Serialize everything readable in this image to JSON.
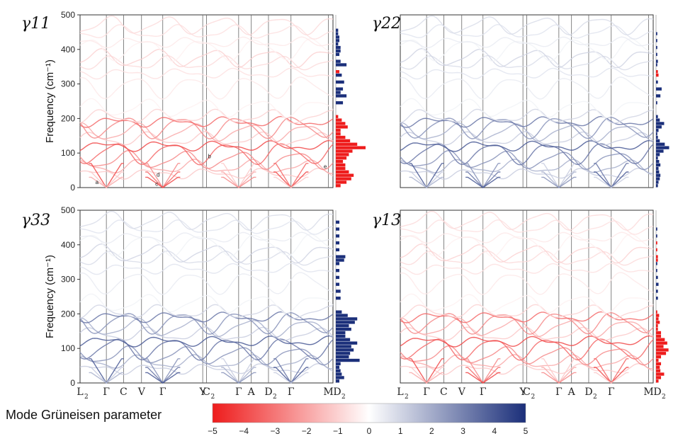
{
  "chart_data": [
    {
      "type": "line",
      "subtype": "phonon-dispersion-with-dos",
      "panel_label": "γ11",
      "ylabel": "Frequency (cm⁻¹)",
      "ylim": [
        0,
        500
      ],
      "yticks": [
        0,
        100,
        200,
        300,
        400,
        500
      ],
      "kpoints": [
        "L2",
        "Γ",
        "C",
        "V",
        "Γ",
        "Y",
        "C2",
        "Γ",
        "A",
        "D2",
        "Γ",
        "M",
        "D2"
      ],
      "kpoints_shown": false,
      "annotations": [
        {
          "text": "a",
          "x": 0.23,
          "y": 10
        },
        {
          "text": "b",
          "x": 1.92,
          "y": 85
        },
        {
          "text": "c",
          "x": 1.13,
          "y": 5
        },
        {
          "text": "d",
          "x": 1.15,
          "y": 32
        },
        {
          "text": "e",
          "x": 3.66,
          "y": 55
        }
      ],
      "dos_histogram": {
        "bins": [
          0,
          10,
          20,
          30,
          40,
          50,
          60,
          70,
          80,
          90,
          100,
          110,
          120,
          130,
          140,
          150,
          160,
          170,
          180,
          190,
          200,
          240,
          260,
          270,
          280,
          300,
          320,
          330,
          350,
          360,
          380,
          390,
          400,
          410,
          420,
          430,
          440,
          450
        ],
        "values": [
          -0.8,
          -1.8,
          -2.6,
          -3.0,
          -2.2,
          -1.6,
          -1.6,
          -1.2,
          -1.8,
          -2.2,
          -2.8,
          -5.0,
          -3.6,
          -2.4,
          -1.6,
          -0.8,
          -0.8,
          -2.0,
          -1.6,
          -1.0,
          -0.4,
          1.2,
          1.8,
          0.8,
          1.2,
          1.4,
          1.0,
          -0.6,
          1.8,
          0.8,
          0.6,
          0.8,
          0.8,
          0.4,
          0.6,
          0.6,
          0.4,
          0.4
        ]
      }
    },
    {
      "type": "line",
      "subtype": "phonon-dispersion-with-dos",
      "panel_label": "γ22",
      "ylim": [
        0,
        500
      ],
      "kpoints": [
        "L2",
        "Γ",
        "C",
        "V",
        "Γ",
        "Y",
        "C2",
        "Γ",
        "A",
        "D2",
        "Γ",
        "M",
        "D2"
      ],
      "kpoints_shown": false,
      "dos_histogram": {
        "bins": [
          0,
          10,
          20,
          30,
          40,
          50,
          60,
          70,
          80,
          90,
          100,
          110,
          120,
          130,
          140,
          150,
          160,
          170,
          180,
          190,
          200,
          240,
          260,
          280,
          300,
          320,
          330,
          350,
          360,
          380,
          400,
          420,
          440
        ],
        "values": [
          0.6,
          0.8,
          1.2,
          1.4,
          1.0,
          0.8,
          1.4,
          1.0,
          0.6,
          1.2,
          2.4,
          4.2,
          2.8,
          1.2,
          0.6,
          0.4,
          0.8,
          1.8,
          2.6,
          1.2,
          0.6,
          0.4,
          1.4,
          1.8,
          0.6,
          -0.8,
          -0.6,
          0.4,
          0.6,
          0.4,
          0.4,
          0.4,
          0.4
        ]
      }
    },
    {
      "type": "line",
      "subtype": "phonon-dispersion-with-dos",
      "panel_label": "γ33",
      "ylabel": "Frequency (cm⁻¹)",
      "ylim": [
        0,
        500
      ],
      "yticks": [
        0,
        100,
        200,
        300,
        400,
        500
      ],
      "kpoints": [
        "L2",
        "Γ",
        "C",
        "V",
        "Γ",
        "Y",
        "C2",
        "Γ",
        "A",
        "D2",
        "Γ",
        "M",
        "D2"
      ],
      "kpoints_shown": true,
      "dos_histogram": {
        "bins": [
          0,
          10,
          20,
          30,
          40,
          50,
          60,
          70,
          80,
          90,
          100,
          110,
          120,
          130,
          140,
          150,
          160,
          170,
          180,
          190,
          200,
          240,
          260,
          280,
          300,
          320,
          340,
          350,
          360,
          380,
          400,
          420,
          440,
          460
        ],
        "values": [
          0.6,
          1.4,
          1.0,
          0.8,
          0.6,
          0.8,
          4.0,
          2.2,
          2.4,
          3.0,
          2.6,
          3.6,
          2.4,
          1.6,
          1.6,
          2.6,
          2.2,
          3.2,
          3.6,
          2.0,
          1.0,
          0.8,
          0.8,
          0.6,
          0.6,
          0.6,
          0.6,
          1.4,
          1.6,
          0.6,
          0.6,
          0.6,
          0.6,
          0.6
        ]
      }
    },
    {
      "type": "line",
      "subtype": "phonon-dispersion-with-dos",
      "panel_label": "γ13",
      "ylim": [
        0,
        500
      ],
      "kpoints": [
        "L2",
        "Γ",
        "C",
        "V",
        "Γ",
        "Y",
        "C2",
        "Γ",
        "A",
        "D2",
        "Γ",
        "M",
        "D2"
      ],
      "kpoints_shown": true,
      "dos_histogram": {
        "bins": [
          0,
          10,
          20,
          30,
          40,
          50,
          60,
          70,
          80,
          90,
          100,
          110,
          120,
          130,
          140,
          150,
          160,
          170,
          180,
          190,
          200,
          240,
          260,
          280,
          300,
          320,
          340,
          350,
          360,
          380,
          400,
          420,
          440
        ],
        "values": [
          -0.8,
          -1.6,
          -2.6,
          -1.4,
          -1.2,
          -1.6,
          -0.8,
          -1.6,
          -3.2,
          -4.0,
          -2.4,
          -3.6,
          -2.8,
          -1.6,
          -1.6,
          -0.6,
          -0.6,
          -1.2,
          -0.8,
          -1.0,
          -0.4,
          0.6,
          0.6,
          0.8,
          0.6,
          0.4,
          0.4,
          -0.6,
          -0.6,
          -0.4,
          -0.4,
          0.4,
          0.4
        ]
      }
    }
  ],
  "colorbar": {
    "label": "Mode Grüneisen parameter",
    "min": -5,
    "max": 5,
    "ticks": [
      "−5",
      "−4",
      "−3",
      "−2",
      "−1",
      "0",
      "1",
      "2",
      "3",
      "4",
      "5"
    ],
    "colors": {
      "negative": "#ee1c1c",
      "zero": "#ffffff",
      "positive": "#1b2f7a"
    }
  }
}
